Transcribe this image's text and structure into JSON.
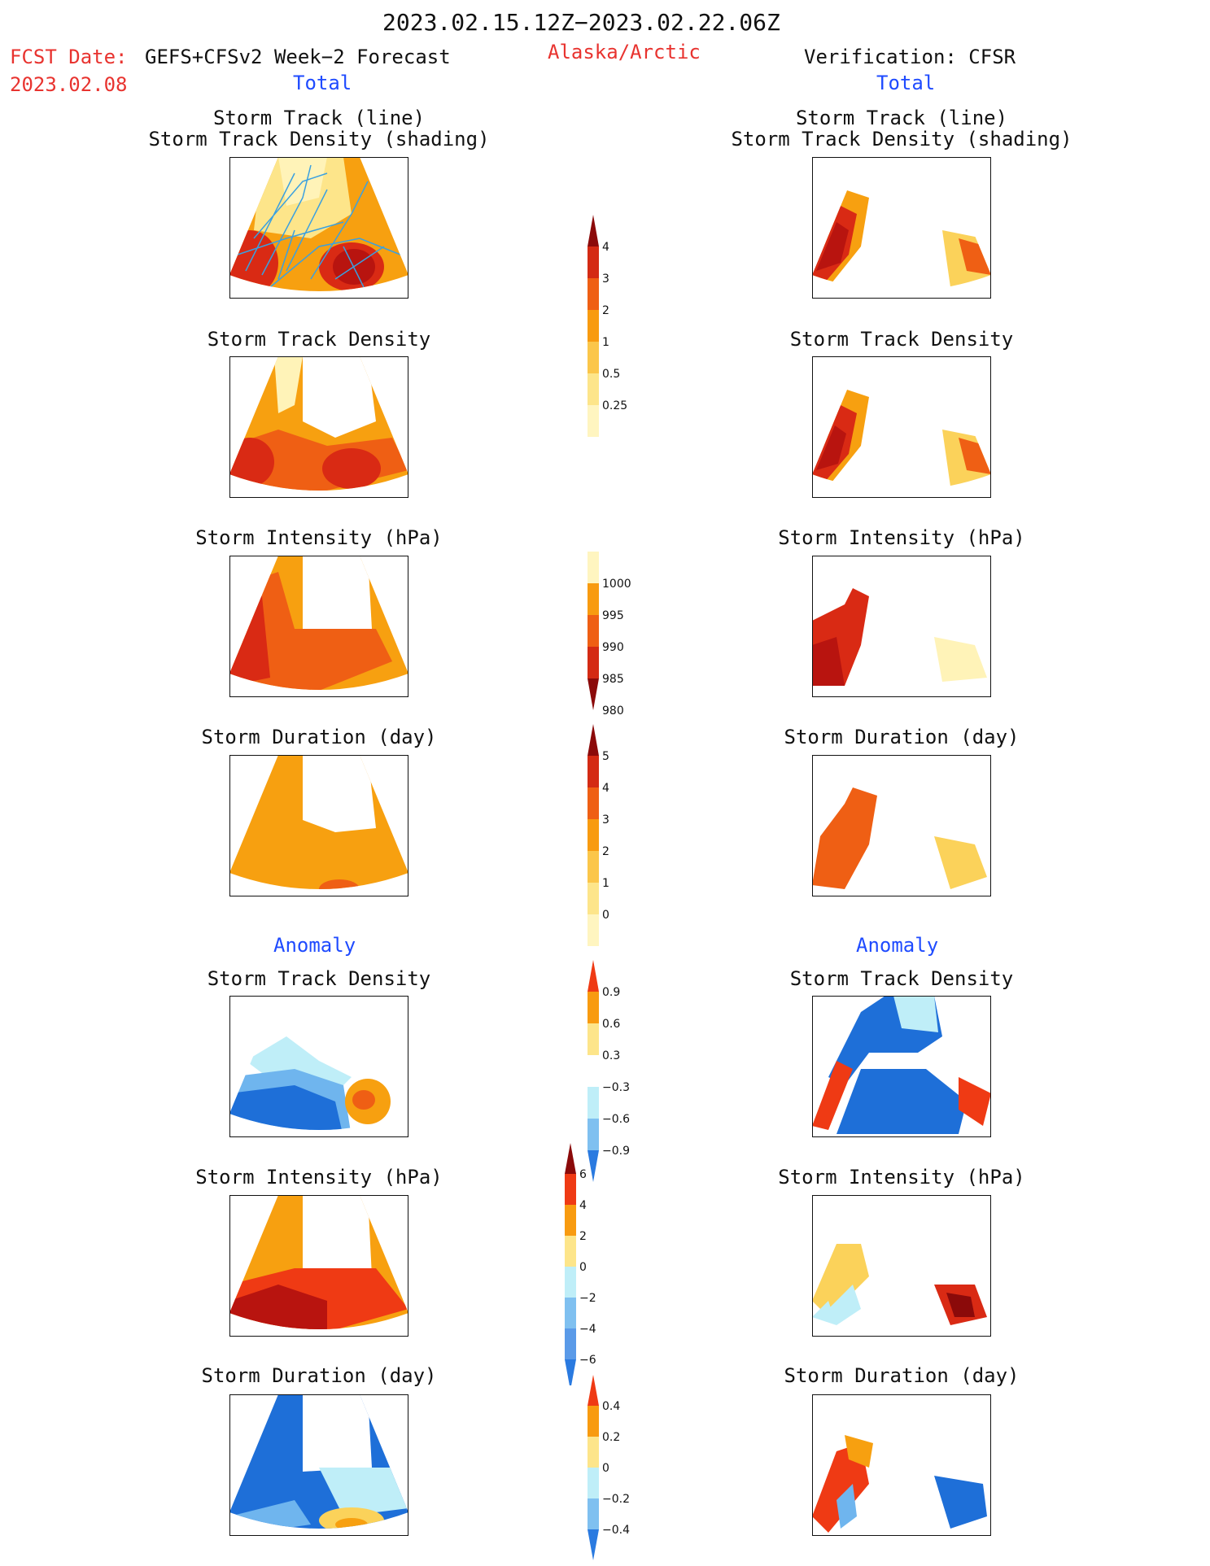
{
  "header": {
    "date_range": "2023.02.15.12Z−2023.02.22.06Z",
    "fcst_label": "FCST Date:",
    "fcst_model": "GEFS+CFSv2 Week−2 Forecast",
    "fcst_date": "2023.02.08",
    "region": "Alaska/Arctic",
    "verification": "Verification: CFSR"
  },
  "sections": {
    "total": "Total",
    "anomaly": "Anomaly"
  },
  "titles": {
    "track_line": "Storm Track (line)",
    "track_density_shading": "Storm Track Density (shading)",
    "track_density": "Storm Track Density",
    "intensity": "Storm Intensity (hPa)",
    "duration": "Storm Duration (day)"
  },
  "colorbars": {
    "density": {
      "labels": [
        "4",
        "3",
        "2",
        "1",
        "0.5",
        "0.25"
      ],
      "colors": [
        "#8b0a0a",
        "#d42a14",
        "#ef5f14",
        "#f89b10",
        "#fbc64a",
        "#fde58a",
        "#fff5c0"
      ]
    },
    "intensity": {
      "labels": [
        "1000",
        "995",
        "990",
        "985",
        "980"
      ],
      "colors": [
        "#fff5c0",
        "#f89b10",
        "#ef5f14",
        "#d42a14",
        "#8b0a0a"
      ]
    },
    "duration": {
      "labels": [
        "5",
        "4",
        "3",
        "2",
        "1",
        "0"
      ],
      "colors": [
        "#8b0a0a",
        "#d42a14",
        "#ef5f14",
        "#f89b10",
        "#fbc64a",
        "#fde58a",
        "#fff5c0"
      ]
    },
    "anom_density": {
      "labels": [
        "0.9",
        "0.6",
        "0.3",
        "−0.3",
        "−0.6",
        "−0.9"
      ],
      "colors": [
        "#ef3a14",
        "#f89b10",
        "#fde58a",
        "#ffffff",
        "#bfeef8",
        "#7fc0f0",
        "#2a7ae0"
      ]
    },
    "anom_intensity": {
      "labels": [
        "6",
        "4",
        "2",
        "0",
        "−2",
        "−4",
        "−6"
      ],
      "colors": [
        "#8b0a0a",
        "#ef3a14",
        "#f89b10",
        "#fde58a",
        "#bfeef8",
        "#7fc0f0",
        "#5a9ae8",
        "#2a7ae0"
      ]
    },
    "anom_duration": {
      "labels": [
        "0.4",
        "0.2",
        "0",
        "−0.2",
        "−0.4"
      ],
      "colors": [
        "#ef3a14",
        "#f89b10",
        "#fde58a",
        "#bfeef8",
        "#7fc0f0",
        "#2a7ae0"
      ]
    }
  },
  "map_palette": {
    "dark_red": "#b8140f",
    "red": "#d92a14",
    "orange_red": "#ef5f14",
    "orange": "#f7a010",
    "yellow": "#fbd25a",
    "light_yellow": "#fff3b8",
    "light_blue": "#bfeef8",
    "mid_blue": "#6fb5ee",
    "blue": "#1e6fd8",
    "track_line": "#3aa0e0"
  }
}
